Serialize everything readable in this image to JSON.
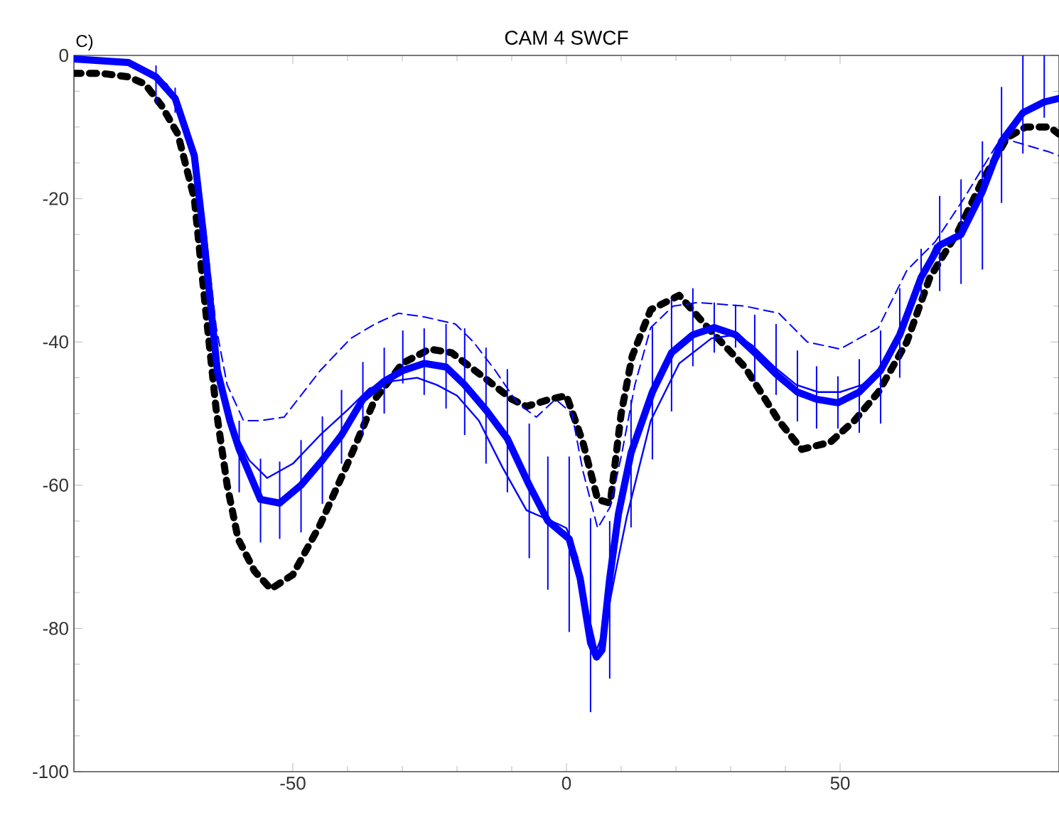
{
  "chart_data": {
    "type": "line",
    "title": "CAM 4 SWCF",
    "annotations": [
      "C)"
    ],
    "xlim": [
      -90,
      90
    ],
    "xticks": [
      -50,
      0,
      50
    ],
    "ylim": [
      -100,
      0
    ],
    "yticks": [
      -100,
      -80,
      -60,
      -40,
      -20,
      0
    ],
    "marker": "none",
    "series": [
      {
        "color": "#000000",
        "line_style": "dotted",
        "x": [
          -90,
          -85,
          -80,
          -77,
          -74,
          -71,
          -68,
          -66,
          -64,
          -62,
          -60,
          -57,
          -54,
          -50,
          -45,
          -40,
          -35,
          -30,
          -25,
          -21,
          -15,
          -10,
          -7.3,
          -3,
          0,
          3,
          5.7,
          8,
          10,
          12,
          15.4,
          20.6,
          25.8,
          32.6,
          38.8,
          43,
          48.2,
          52.6,
          57,
          62.2,
          66.4,
          71.6,
          76,
          80.5,
          83.9,
          88.3,
          90
        ],
        "values": [
          -2.5,
          -2.5,
          -3,
          -4,
          -7,
          -11,
          -20,
          -35,
          -49.5,
          -60,
          -67.5,
          -72,
          -74.5,
          -72.5,
          -65.5,
          -57,
          -48,
          -43,
          -41,
          -41.5,
          -45,
          -48,
          -49,
          -48,
          -47.5,
          -54,
          -62,
          -62.5,
          -50,
          -42,
          -35.5,
          -33.5,
          -38,
          -43.5,
          -51,
          -55,
          -54,
          -51,
          -47,
          -40,
          -31,
          -24.5,
          -17.5,
          -11.5,
          -10,
          -10,
          -11
        ]
      },
      {
        "color": "#0000ff",
        "line_style": "dashed",
        "x": [
          -90,
          -80,
          -77,
          -73,
          -70.6,
          -68,
          -66,
          -64,
          -62,
          -59,
          -56,
          -51.6,
          -45,
          -39.4,
          -35,
          -30.7,
          -26,
          -20.3,
          -17,
          -13,
          -9,
          -5.5,
          -2,
          1,
          3,
          5.7,
          8,
          10,
          12.5,
          15.4,
          19.5,
          24,
          32.6,
          38.8,
          44,
          50,
          57,
          62.2,
          67.4,
          72.6,
          79.4,
          83.9,
          88.3,
          90
        ],
        "values": [
          -0.5,
          -1,
          -2,
          -4,
          -7.5,
          -14,
          -24,
          -38,
          -46,
          -51,
          -51,
          -50.5,
          -44,
          -39.5,
          -37.5,
          -36,
          -36.5,
          -37.5,
          -40,
          -44,
          -48.5,
          -50.5,
          -48,
          -50,
          -58,
          -66,
          -63,
          -56,
          -46,
          -38,
          -35,
          -34.5,
          -35,
          -36,
          -40,
          -41,
          -38,
          -30,
          -26,
          -20,
          -11.5,
          -12.5,
          -13.5,
          -14
        ]
      },
      {
        "color": "#0000ff",
        "line_style": "solid",
        "x": [
          -90,
          -80,
          -77,
          -73,
          -70.6,
          -68,
          -66.4,
          -63.8,
          -61,
          -58,
          -54.7,
          -50,
          -45,
          -40,
          -36,
          -32,
          -27.3,
          -23.7,
          -20,
          -16,
          -11.7,
          -7.3,
          -1.3,
          0,
          2,
          4,
          5.5,
          7,
          9,
          11,
          15.4,
          20.6,
          26.5,
          31,
          34,
          38,
          42,
          46,
          50,
          54,
          58,
          62,
          65,
          67.4,
          72,
          75,
          78,
          80,
          83,
          87,
          90
        ],
        "values": [
          -0.5,
          -1,
          -2,
          -4.5,
          -8,
          -14,
          -24.5,
          -44,
          -52,
          -56.5,
          -59,
          -57,
          -53,
          -49.5,
          -46.5,
          -45.5,
          -45,
          -46,
          -47.5,
          -51,
          -57.5,
          -63.5,
          -65.5,
          -66,
          -70,
          -78,
          -83,
          -80,
          -72,
          -64.5,
          -51,
          -43,
          -39.5,
          -39,
          -40.5,
          -43.5,
          -46,
          -47,
          -47,
          -46,
          -43.5,
          -37,
          -30.5,
          -26.5,
          -25.5,
          -21,
          -15,
          -11,
          -8,
          -6.5,
          -6
        ]
      },
      {
        "color": "#0000ff",
        "line_style": "solid",
        "x": [
          -90,
          -80,
          -75,
          -71.5,
          -68,
          -66.4,
          -63.8,
          -61.5,
          -59.8,
          -55.9,
          -52.4,
          -48.5,
          -44.6,
          -41.1,
          -37.2,
          -33.3,
          -29.9,
          -26,
          -22,
          -18.6,
          -14.7,
          -10.8,
          -6.8,
          -3.4,
          0.5,
          2.5,
          4.4,
          5.5,
          6.5,
          7.9,
          9.5,
          11.8,
          15.7,
          19.2,
          23.1,
          27,
          30.9,
          34.4,
          38.3,
          42.2,
          45.7,
          49.6,
          53.5,
          57.4,
          60.9,
          64.8,
          68.2,
          72.1,
          76,
          79.5,
          83.4,
          87.3,
          90
        ],
        "values": [
          -0.5,
          -1,
          -3,
          -6,
          -14,
          -24.5,
          -44,
          -51,
          -55,
          -62,
          -62.5,
          -60,
          -56.5,
          -53,
          -48,
          -45.5,
          -44,
          -43,
          -43.5,
          -46,
          -49.5,
          -53.5,
          -60,
          -65,
          -67.5,
          -73,
          -82,
          -84,
          -83,
          -73,
          -64,
          -55.5,
          -47,
          -41.5,
          -39,
          -38,
          -39,
          -41.5,
          -44.5,
          -47,
          -48,
          -48.5,
          -47,
          -44,
          -39,
          -31,
          -26.5,
          -25,
          -19,
          -12,
          -8,
          -6.5,
          -6
        ],
        "errors": [
          null,
          null,
          [
            -6.8,
            -1.4
          ],
          [
            -8,
            -4.5
          ],
          null,
          null,
          null,
          null,
          [
            -61,
            -51
          ],
          [
            -68,
            -56.3
          ],
          [
            -67.5,
            -56.7
          ],
          [
            -66.6,
            -53.7
          ],
          [
            -62.6,
            -50.4
          ],
          [
            -57,
            -46.7
          ],
          [
            -53,
            -42.8
          ],
          [
            -50,
            -40.8
          ],
          [
            -45.8,
            -38.4
          ],
          [
            -47.4,
            -38.1
          ],
          [
            -49.3,
            -37.5
          ],
          [
            -53,
            -38.1
          ],
          [
            -57,
            -40.8
          ],
          [
            -61,
            -43.8
          ],
          [
            -70.2,
            -51.4
          ],
          [
            -74.6,
            -56
          ],
          [
            -80.5,
            -56
          ],
          null,
          [
            -91.7,
            -64.6
          ],
          null,
          null,
          [
            -87,
            -65
          ],
          null,
          [
            -65.9,
            -48.1
          ],
          [
            -56.4,
            -37.9
          ],
          [
            -49.7,
            -33.9
          ],
          [
            -43.4,
            -32.5
          ],
          [
            -41.5,
            -34.5
          ],
          [
            -40.8,
            -34.8
          ],
          [
            -45.5,
            -36.2
          ],
          [
            -47.4,
            -37.5
          ],
          [
            -51.1,
            -41.2
          ],
          [
            -52.1,
            -43.4
          ],
          [
            -52.1,
            -44.8
          ],
          [
            -52.7,
            -42.4
          ],
          [
            -51.4,
            -38.4
          ],
          [
            -45,
            -32.5
          ],
          [
            -33.9,
            -27
          ],
          [
            -32.9,
            -19.6
          ],
          [
            -31.9,
            -17.3
          ],
          [
            -29.9,
            -12
          ],
          [
            -20.6,
            -4.4
          ],
          [
            -13.7,
            0
          ],
          [
            -8.7,
            0
          ],
          null
        ]
      }
    ]
  }
}
